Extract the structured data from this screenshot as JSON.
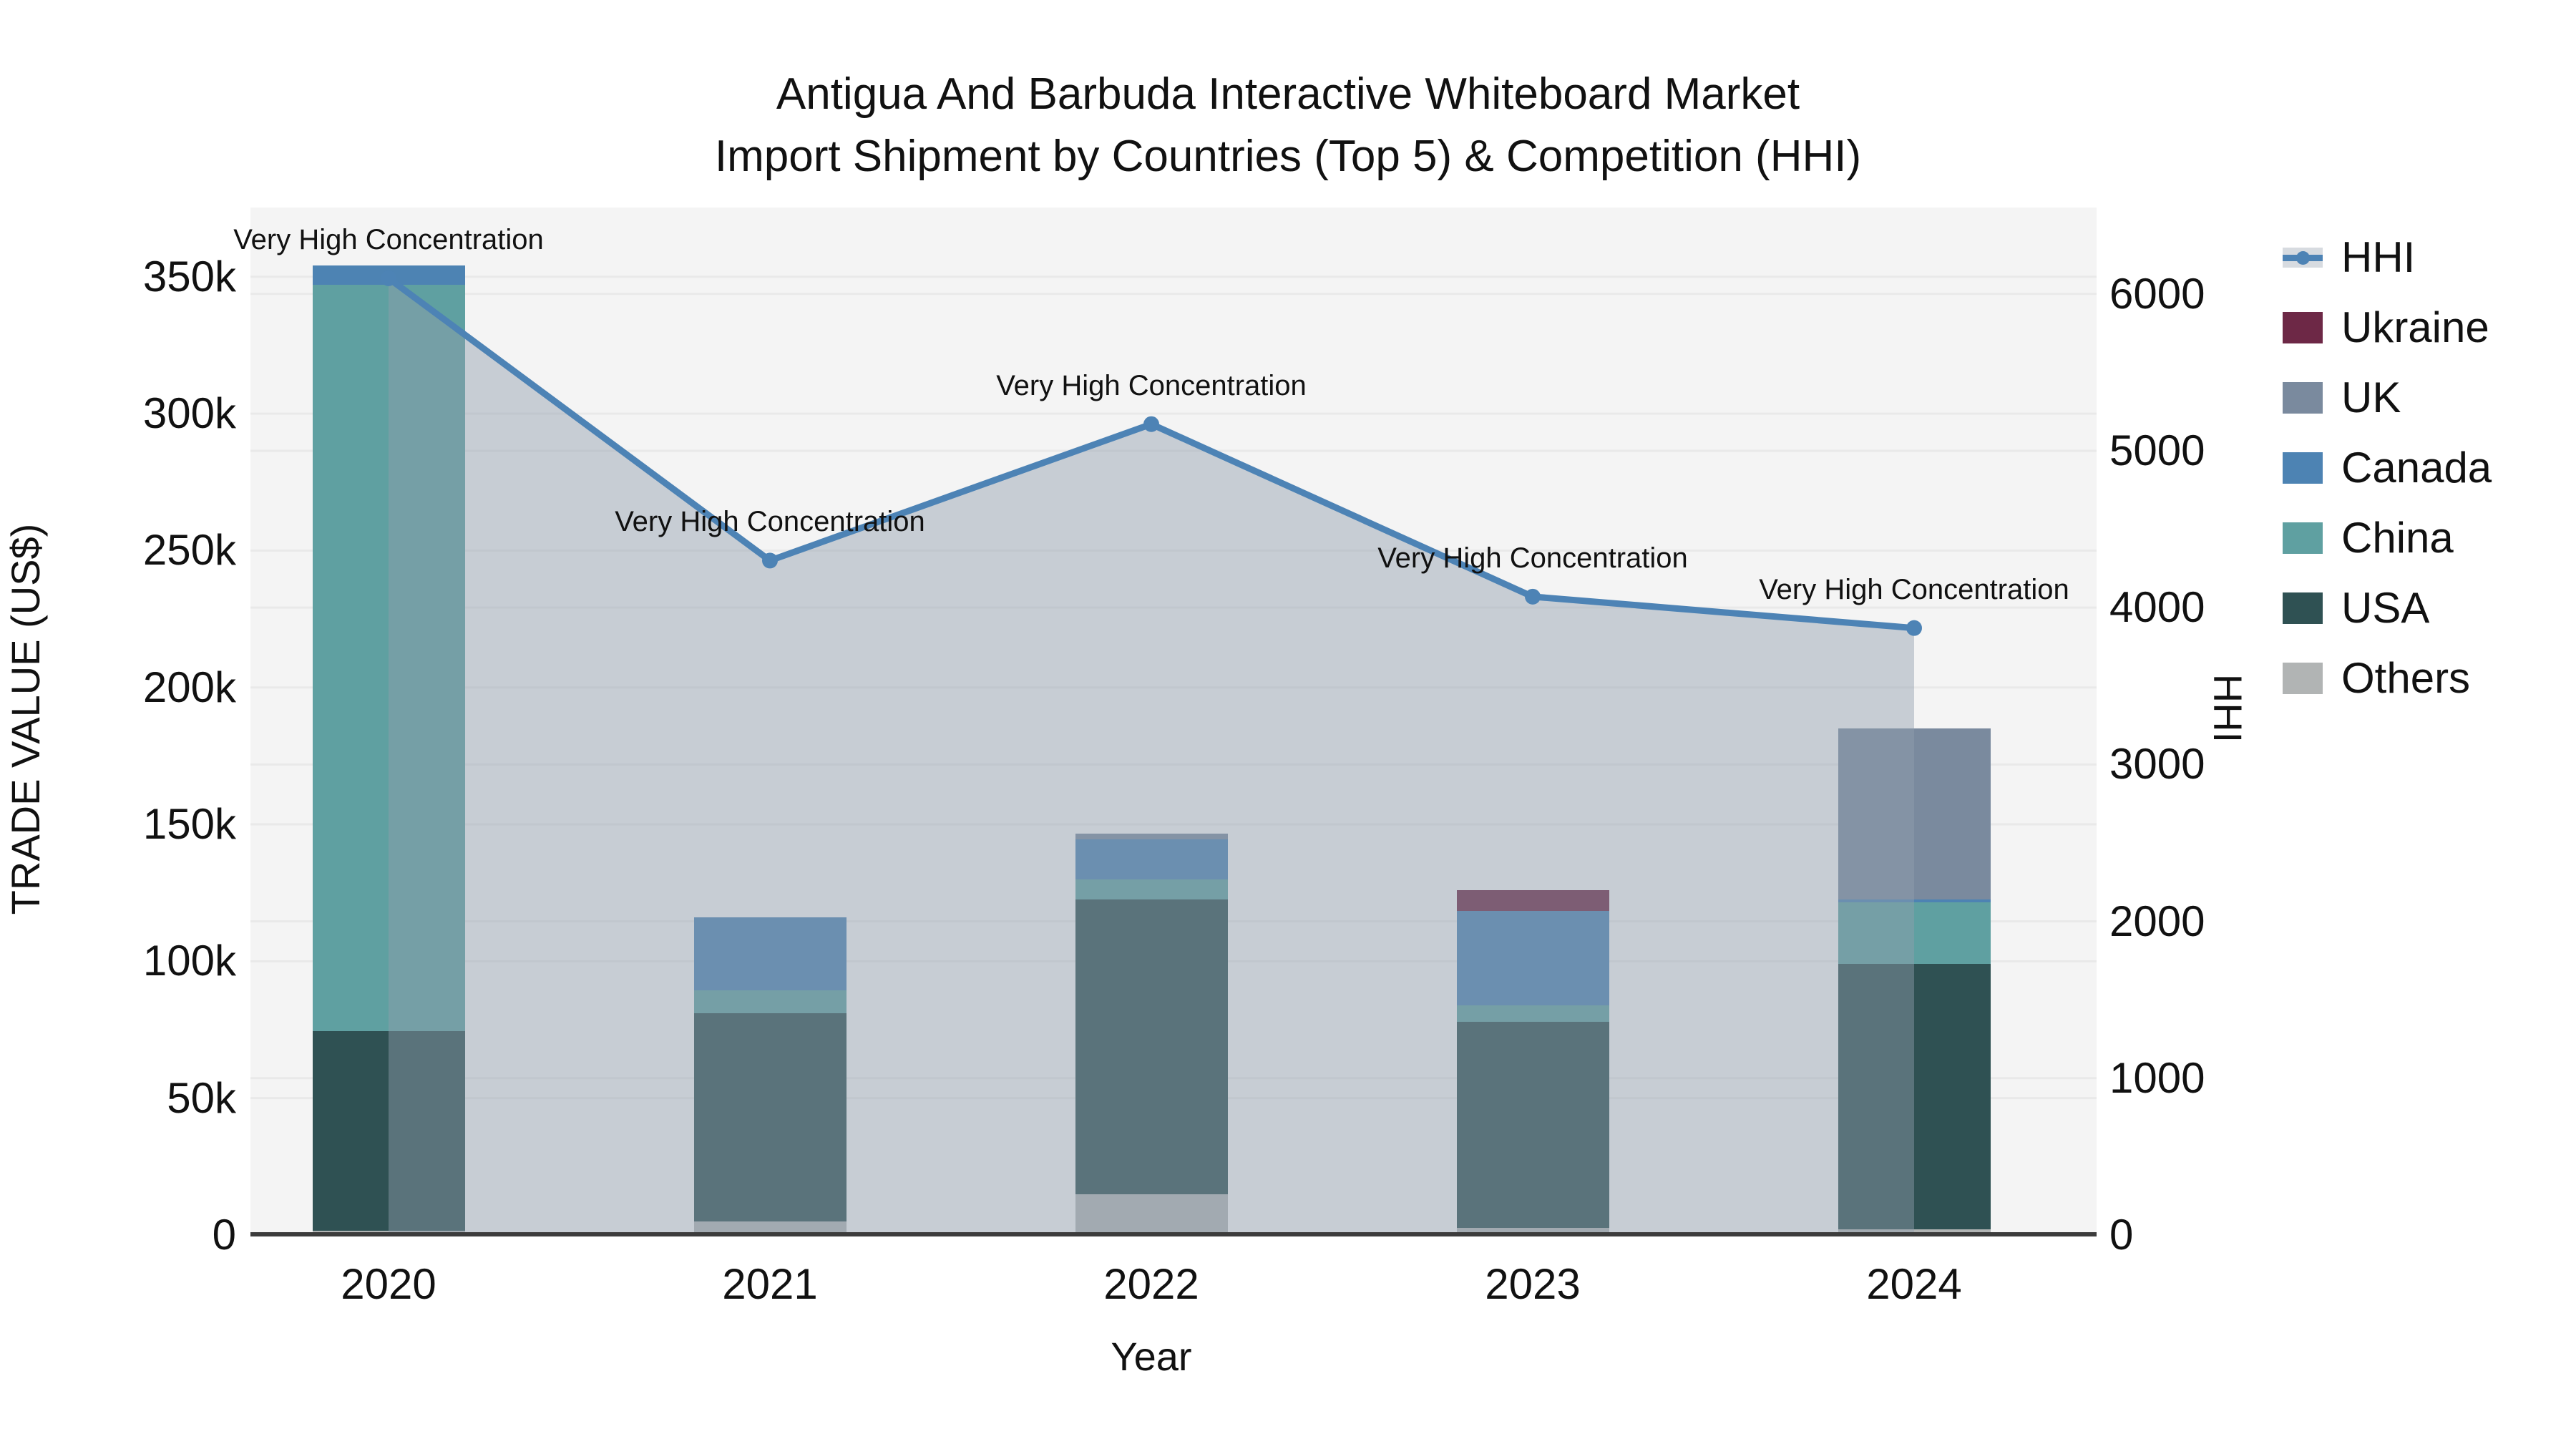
{
  "title": {
    "line1": "Antigua And Barbuda Interactive Whiteboard Market",
    "line2": "Import Shipment by Countries (Top 5) & Competition (HHI)"
  },
  "axes": {
    "x": {
      "label": "Year",
      "ticks": [
        "2020",
        "2021",
        "2022",
        "2023",
        "2024"
      ]
    },
    "left": {
      "label": "TRADE VALUE (US$)",
      "ticks": [
        {
          "label": "0",
          "value": 0
        },
        {
          "label": "50k",
          "value": 50
        },
        {
          "label": "100k",
          "value": 100
        },
        {
          "label": "150k",
          "value": 150
        },
        {
          "label": "200k",
          "value": 200
        },
        {
          "label": "250k",
          "value": 250
        },
        {
          "label": "300k",
          "value": 300
        },
        {
          "label": "350k",
          "value": 350
        }
      ],
      "range_usd_k": [
        0,
        375.3
      ]
    },
    "right": {
      "label": "HHI",
      "ticks": [
        {
          "label": "0",
          "value": 0
        },
        {
          "label": "1000",
          "value": 1000
        },
        {
          "label": "2000",
          "value": 2000
        },
        {
          "label": "3000",
          "value": 3000
        },
        {
          "label": "4000",
          "value": 4000
        },
        {
          "label": "5000",
          "value": 5000
        },
        {
          "label": "6000",
          "value": 6000
        }
      ],
      "range": [
        0,
        6551
      ]
    }
  },
  "legend": {
    "items": [
      {
        "label": "HHI",
        "type": "line",
        "color": "#4d83b5"
      },
      {
        "label": "Ukraine",
        "type": "box",
        "color": "#6d2846"
      },
      {
        "label": "UK",
        "type": "box",
        "color": "#7a8a9e"
      },
      {
        "label": "Canada",
        "type": "box",
        "color": "#4d83b3"
      },
      {
        "label": "China",
        "type": "box",
        "color": "#5fa0a1"
      },
      {
        "label": "USA",
        "type": "box",
        "color": "#2f5153"
      },
      {
        "label": "Others",
        "type": "box",
        "color": "#b1b4b4"
      }
    ]
  },
  "chart_data": {
    "type": "combo: stacked bars (left axis) + line with area fill (right axis)",
    "categories": [
      "2020",
      "2021",
      "2022",
      "2023",
      "2024"
    ],
    "bar_unit": "US$ thousands",
    "bar_series_bottom_to_top": [
      {
        "name": "Others",
        "color": "#b1b4b4",
        "values": [
          1.5,
          5,
          15,
          2.5,
          2
        ]
      },
      {
        "name": "USA",
        "color": "#2f5153",
        "values": [
          73,
          76,
          107.5,
          75.5,
          97
        ]
      },
      {
        "name": "China",
        "color": "#5fa0a1",
        "values": [
          272.5,
          8.5,
          7.5,
          6,
          22.5
        ]
      },
      {
        "name": "Canada",
        "color": "#4d83b3",
        "values": [
          7,
          26.5,
          14.5,
          34.5,
          1
        ]
      },
      {
        "name": "UK",
        "color": "#7a8a9e",
        "values": [
          0,
          0,
          2,
          0,
          62.5
        ]
      },
      {
        "name": "Ukraine",
        "color": "#6d2846",
        "values": [
          0,
          0,
          0,
          7.5,
          0
        ]
      }
    ],
    "bar_totals_usd_k": [
      354,
      116,
      146.5,
      126,
      185
    ],
    "line_series": {
      "name": "HHI",
      "axis": "right",
      "color": "#4d83b5",
      "area_fill": "rgba(145,158,172,0.45)",
      "values": [
        6100,
        4300,
        5170,
        4070,
        3870
      ]
    },
    "point_annotations": [
      "Very High Concentration",
      "Very High Concentration",
      "Very High Concentration",
      "Very High Concentration",
      "Very High Concentration"
    ],
    "layout_hints": {
      "grid": "light gridlines at every 50k (left axis) and every 1000 (right axis)",
      "legend_position": "right, outside plot",
      "plot_background": "#f4f4f4"
    }
  }
}
